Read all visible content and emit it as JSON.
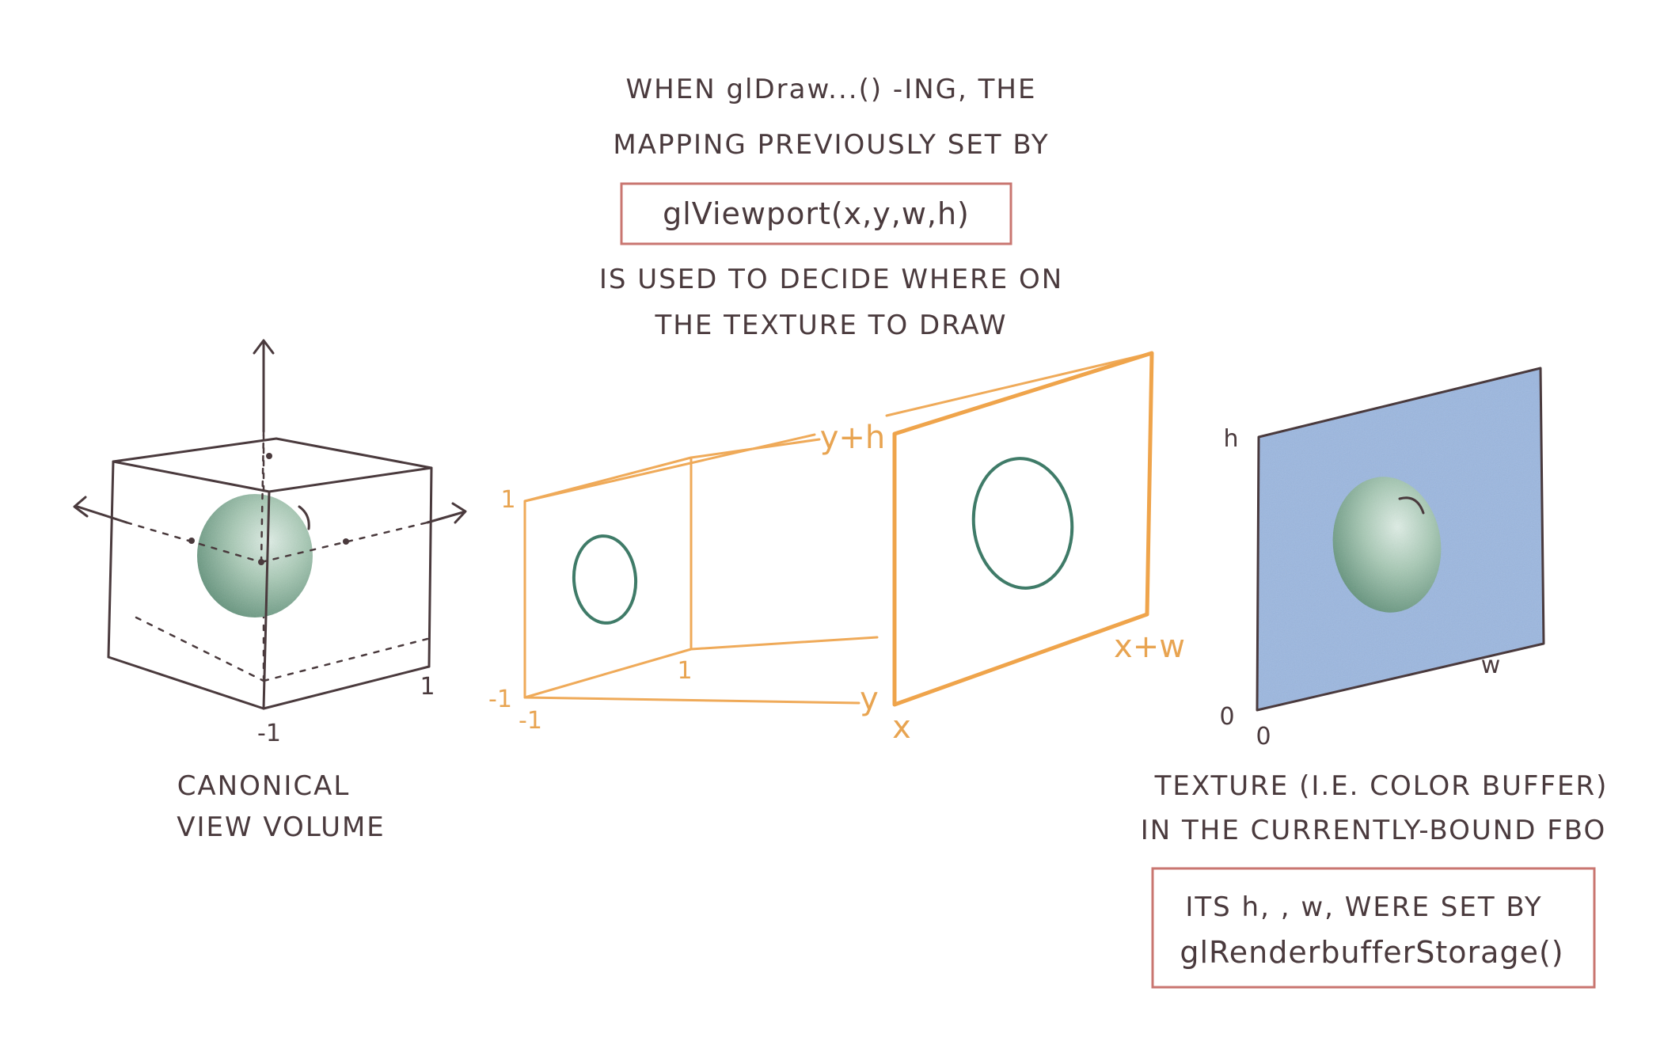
{
  "header": {
    "line1": "WHEN glDraw...() -ING, THE",
    "line2": "MAPPING PREVIOUSLY SET BY",
    "code": "glViewport(x,y,w,h)",
    "line3": "IS USED TO DECIDE WHERE ON",
    "line4": "THE TEXTURE TO DRAW"
  },
  "cube": {
    "label_x_one": "1",
    "label_minus_one": "-1",
    "caption_line1": "CANONICAL",
    "caption_line2": "VIEW VOLUME"
  },
  "frustum": {
    "near_top": "1",
    "near_bottom": "-1",
    "near_left": "-1",
    "near_right": "1",
    "far_top_label": "y+h",
    "far_bottom_label": "y",
    "far_left_label": "x",
    "far_right_label": "x+w"
  },
  "texture": {
    "h_label": "h",
    "w_label": "w",
    "origin_y": "0",
    "origin_x": "0",
    "caption_line1": "TEXTURE (I.E. COLOR BUFFER)",
    "caption_line2": "IN THE CURRENTLY-BOUND FBO",
    "note_line1": "ITS h, , w, WERE SET BY",
    "note_line2": "glRenderbufferStorage()"
  },
  "colors": {
    "ink": "#4a3a3d",
    "orange": "#efaa59",
    "green": "#3f7b68",
    "blue": "#93b1dc",
    "red_box": "#c97670"
  }
}
